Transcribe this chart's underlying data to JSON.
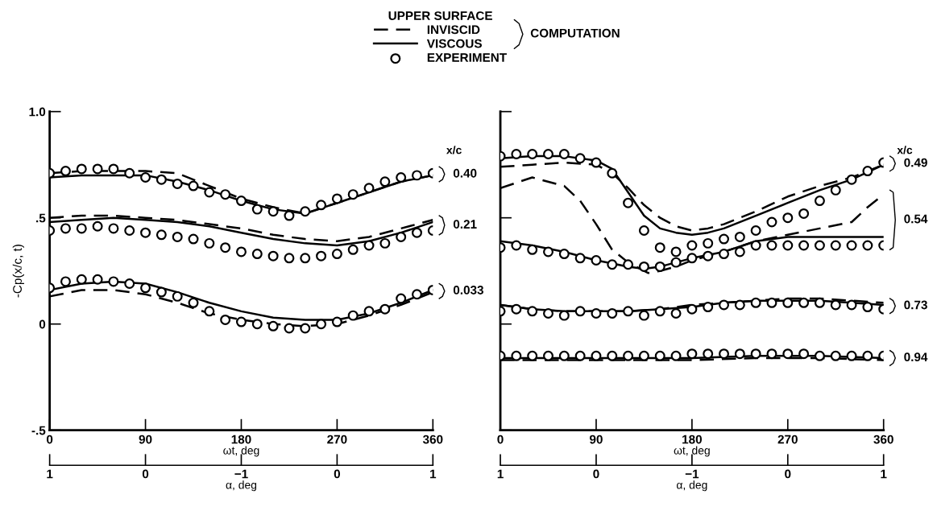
{
  "chart_data": [
    {
      "type": "line",
      "legend_title": "UPPER SURFACE",
      "legend": "top",
      "ylabel": "-Cp(x/c, t)",
      "xlabel": "ωt, deg",
      "x2label": "α, deg",
      "xlim": [
        0,
        360
      ],
      "xticks": [
        0,
        90,
        180,
        270,
        360
      ],
      "ylim": [
        -0.5,
        1.0
      ],
      "yticks": [
        {
          "value": -0.5,
          "label": "-.5"
        },
        0,
        {
          "value": 0.5,
          "label": ".5"
        },
        {
          "value": 1.0,
          "label": "1.0"
        }
      ],
      "grid": false,
      "annotations": [
        "1",
        "0",
        "−1",
        "0",
        "1",
        "x/c",
        "COMPUTATION",
        "0.40",
        "0.21",
        "0.033"
      ],
      "series": [
        {
          "name": "INVISCID",
          "type": "line",
          "line_style": "dashed",
          "color": "#000000",
          "x": [
            0,
            30,
            60,
            90,
            120,
            150,
            180,
            210,
            240,
            270,
            300,
            330,
            360
          ],
          "values": [
            0.71,
            0.72,
            0.72,
            0.72,
            0.71,
            0.65,
            0.59,
            0.55,
            0.52,
            0.57,
            0.62,
            0.67,
            0.7
          ]
        },
        {
          "name": "VISCOUS",
          "type": "line",
          "line_style": "solid",
          "color": "#000000",
          "x": [
            0,
            30,
            60,
            90,
            120,
            150,
            180,
            210,
            240,
            270,
            300,
            330,
            360
          ],
          "values": [
            0.69,
            0.7,
            0.7,
            0.7,
            0.67,
            0.63,
            0.58,
            0.54,
            0.52,
            0.57,
            0.62,
            0.67,
            0.7
          ]
        },
        {
          "name": "EXPERIMENT",
          "type": "scatter",
          "marker": "circle",
          "color": "#000000",
          "x": [
            0,
            15,
            30,
            45,
            60,
            75,
            90,
            105,
            120,
            135,
            150,
            165,
            180,
            195,
            210,
            225,
            240,
            255,
            270,
            285,
            300,
            315,
            330,
            345,
            360
          ],
          "values": [
            0.71,
            0.72,
            0.73,
            0.73,
            0.73,
            0.71,
            0.69,
            0.68,
            0.66,
            0.65,
            0.62,
            0.61,
            0.58,
            0.54,
            0.53,
            0.51,
            0.53,
            0.56,
            0.59,
            0.61,
            0.64,
            0.67,
            0.69,
            0.7,
            0.71
          ]
        },
        {
          "type": "line",
          "line_style": "dashed",
          "color": "#000000",
          "x": [
            0,
            30,
            60,
            90,
            120,
            150,
            180,
            210,
            240,
            270,
            300,
            330,
            360
          ],
          "values": [
            0.5,
            0.51,
            0.51,
            0.5,
            0.49,
            0.47,
            0.45,
            0.42,
            0.4,
            0.39,
            0.41,
            0.45,
            0.49
          ]
        },
        {
          "type": "line",
          "line_style": "solid",
          "color": "#000000",
          "x": [
            0,
            30,
            60,
            90,
            120,
            150,
            180,
            210,
            240,
            270,
            300,
            330,
            360
          ],
          "values": [
            0.48,
            0.49,
            0.5,
            0.49,
            0.48,
            0.46,
            0.43,
            0.4,
            0.38,
            0.37,
            0.39,
            0.43,
            0.48
          ]
        },
        {
          "type": "scatter",
          "marker": "circle",
          "color": "#000000",
          "x": [
            0,
            15,
            30,
            45,
            60,
            75,
            90,
            105,
            120,
            135,
            150,
            165,
            180,
            195,
            210,
            225,
            240,
            255,
            270,
            285,
            300,
            315,
            330,
            345,
            360
          ],
          "values": [
            0.44,
            0.45,
            0.45,
            0.46,
            0.45,
            0.44,
            0.43,
            0.42,
            0.41,
            0.4,
            0.38,
            0.36,
            0.34,
            0.33,
            0.32,
            0.31,
            0.31,
            0.32,
            0.33,
            0.35,
            0.37,
            0.38,
            0.41,
            0.43,
            0.44
          ]
        },
        {
          "type": "line",
          "line_style": "dashed",
          "color": "#000000",
          "x": [
            0,
            30,
            60,
            90,
            120,
            150,
            180,
            210,
            240,
            270,
            300,
            330,
            360
          ],
          "values": [
            0.13,
            0.16,
            0.16,
            0.14,
            0.1,
            0.05,
            0.02,
            0.0,
            -0.01,
            0.0,
            0.04,
            0.09,
            0.15
          ]
        },
        {
          "type": "line",
          "line_style": "solid",
          "color": "#000000",
          "x": [
            0,
            30,
            60,
            90,
            120,
            150,
            180,
            210,
            240,
            270,
            300,
            330,
            360
          ],
          "values": [
            0.16,
            0.19,
            0.2,
            0.19,
            0.15,
            0.1,
            0.06,
            0.03,
            0.02,
            0.02,
            0.05,
            0.1,
            0.16
          ]
        },
        {
          "type": "scatter",
          "marker": "circle",
          "color": "#000000",
          "x": [
            0,
            15,
            30,
            45,
            60,
            75,
            90,
            105,
            120,
            135,
            150,
            165,
            180,
            195,
            210,
            225,
            240,
            255,
            270,
            285,
            300,
            315,
            330,
            345,
            360
          ],
          "values": [
            0.17,
            0.2,
            0.21,
            0.21,
            0.2,
            0.19,
            0.17,
            0.15,
            0.13,
            0.1,
            0.06,
            0.02,
            0.01,
            0.0,
            -0.01,
            -0.02,
            -0.02,
            0.0,
            0.01,
            0.04,
            0.06,
            0.07,
            0.12,
            0.14,
            0.16
          ]
        }
      ]
    },
    {
      "type": "line",
      "xlabel": "ωt, deg",
      "x2label": "α, deg",
      "tick_labels": "x",
      "xlim": [
        0,
        360
      ],
      "xticks": [
        0,
        90,
        180,
        270,
        360
      ],
      "ylim": [
        -0.5,
        1.0
      ],
      "yticks": [
        -0.5,
        0,
        0.5,
        1.0
      ],
      "grid": false,
      "annotations": [
        "1",
        "0",
        "−1",
        "0",
        "1",
        "x/c",
        "0.49",
        "0.54",
        "0.73",
        "0.94"
      ],
      "series": [
        {
          "type": "line",
          "line_style": "dashed",
          "color": "#000000",
          "x": [
            0,
            30,
            60,
            90,
            105,
            120,
            135,
            150,
            165,
            180,
            195,
            210,
            240,
            270,
            300,
            330,
            360
          ],
          "values": [
            0.74,
            0.75,
            0.76,
            0.75,
            0.71,
            0.64,
            0.56,
            0.5,
            0.46,
            0.44,
            0.45,
            0.47,
            0.53,
            0.6,
            0.65,
            0.69,
            0.75
          ]
        },
        {
          "type": "line",
          "line_style": "solid",
          "color": "#000000",
          "x": [
            0,
            30,
            60,
            90,
            105,
            120,
            135,
            150,
            165,
            180,
            195,
            210,
            240,
            270,
            300,
            330,
            360
          ],
          "values": [
            0.78,
            0.79,
            0.79,
            0.77,
            0.73,
            0.62,
            0.51,
            0.45,
            0.43,
            0.42,
            0.43,
            0.45,
            0.51,
            0.57,
            0.63,
            0.68,
            0.75
          ]
        },
        {
          "type": "scatter",
          "marker": "circle",
          "color": "#000000",
          "x": [
            0,
            15,
            30,
            45,
            60,
            75,
            90,
            105,
            120,
            135,
            150,
            165,
            180,
            195,
            210,
            225,
            240,
            255,
            270,
            285,
            300,
            315,
            330,
            345,
            360
          ],
          "values": [
            0.79,
            0.8,
            0.8,
            0.8,
            0.8,
            0.78,
            0.76,
            0.71,
            0.57,
            0.44,
            0.36,
            0.34,
            0.37,
            0.38,
            0.4,
            0.41,
            0.44,
            0.48,
            0.5,
            0.52,
            0.58,
            0.63,
            0.68,
            0.72,
            0.76
          ]
        },
        {
          "type": "line",
          "line_style": "dashed",
          "color": "#000000",
          "x": [
            0,
            30,
            60,
            75,
            90,
            105,
            120,
            139,
            150,
            165,
            180,
            210,
            240,
            270,
            300,
            330,
            345,
            360
          ],
          "values": [
            0.64,
            0.69,
            0.65,
            0.58,
            0.47,
            0.35,
            0.29,
            0.24,
            0.25,
            0.27,
            0.3,
            0.34,
            0.39,
            0.42,
            0.45,
            0.48,
            0.55,
            0.61
          ]
        },
        {
          "type": "line",
          "line_style": "solid",
          "color": "#000000",
          "x": [
            0,
            30,
            60,
            90,
            120,
            135,
            150,
            180,
            210,
            240,
            270,
            300,
            330,
            360
          ],
          "values": [
            0.39,
            0.37,
            0.34,
            0.3,
            0.27,
            0.26,
            0.27,
            0.31,
            0.34,
            0.39,
            0.41,
            0.41,
            0.41,
            0.41
          ]
        },
        {
          "type": "scatter",
          "marker": "circle",
          "color": "#000000",
          "x": [
            0,
            15,
            30,
            45,
            60,
            75,
            90,
            105,
            120,
            135,
            150,
            165,
            180,
            195,
            210,
            225,
            240,
            255,
            270,
            285,
            300,
            315,
            330,
            345,
            360
          ],
          "values": [
            0.36,
            0.37,
            0.35,
            0.34,
            0.33,
            0.31,
            0.3,
            0.28,
            0.28,
            0.27,
            0.27,
            0.29,
            0.31,
            0.32,
            0.33,
            0.34,
            0.37,
            0.37,
            0.37,
            0.37,
            0.37,
            0.37,
            0.37,
            0.37,
            0.37
          ]
        },
        {
          "type": "line",
          "line_style": "dashed",
          "color": "#000000",
          "x": [
            0,
            30,
            60,
            90,
            120,
            150,
            180,
            210,
            240,
            270,
            300,
            330,
            360
          ],
          "values": [
            0.09,
            0.07,
            0.06,
            0.06,
            0.06,
            0.07,
            0.09,
            0.1,
            0.11,
            0.12,
            0.12,
            0.11,
            0.1
          ]
        },
        {
          "type": "line",
          "line_style": "solid",
          "color": "#000000",
          "x": [
            0,
            30,
            60,
            90,
            120,
            150,
            180,
            210,
            240,
            270,
            300,
            330,
            360
          ],
          "values": [
            0.09,
            0.07,
            0.06,
            0.06,
            0.06,
            0.07,
            0.08,
            0.1,
            0.11,
            0.11,
            0.11,
            0.1,
            0.09
          ]
        },
        {
          "type": "scatter",
          "marker": "circle",
          "color": "#000000",
          "x": [
            0,
            15,
            30,
            45,
            60,
            75,
            90,
            105,
            120,
            135,
            150,
            165,
            180,
            195,
            210,
            225,
            240,
            255,
            270,
            285,
            300,
            315,
            330,
            345,
            360
          ],
          "values": [
            0.06,
            0.07,
            0.06,
            0.05,
            0.04,
            0.06,
            0.05,
            0.05,
            0.06,
            0.04,
            0.06,
            0.05,
            0.07,
            0.08,
            0.09,
            0.09,
            0.1,
            0.1,
            0.1,
            0.1,
            0.1,
            0.09,
            0.09,
            0.08,
            0.07
          ]
        },
        {
          "type": "line",
          "line_style": "dashed",
          "color": "#000000",
          "x": [
            0,
            60,
            120,
            180,
            240,
            300,
            360
          ],
          "values": [
            -0.17,
            -0.17,
            -0.17,
            -0.17,
            -0.16,
            -0.16,
            -0.17
          ]
        },
        {
          "type": "line",
          "line_style": "solid",
          "color": "#000000",
          "x": [
            0,
            60,
            120,
            180,
            240,
            300,
            360
          ],
          "values": [
            -0.16,
            -0.16,
            -0.16,
            -0.16,
            -0.15,
            -0.15,
            -0.16
          ]
        },
        {
          "type": "scatter",
          "marker": "circle",
          "color": "#000000",
          "x": [
            0,
            15,
            30,
            45,
            60,
            75,
            90,
            105,
            120,
            135,
            150,
            165,
            180,
            195,
            210,
            225,
            240,
            255,
            270,
            285,
            300,
            315,
            330,
            345,
            360
          ],
          "values": [
            -0.15,
            -0.15,
            -0.15,
            -0.15,
            -0.15,
            -0.15,
            -0.15,
            -0.15,
            -0.15,
            -0.15,
            -0.15,
            -0.15,
            -0.14,
            -0.14,
            -0.14,
            -0.14,
            -0.14,
            -0.14,
            -0.14,
            -0.14,
            -0.15,
            -0.15,
            -0.15,
            -0.15,
            -0.15
          ]
        }
      ]
    }
  ]
}
